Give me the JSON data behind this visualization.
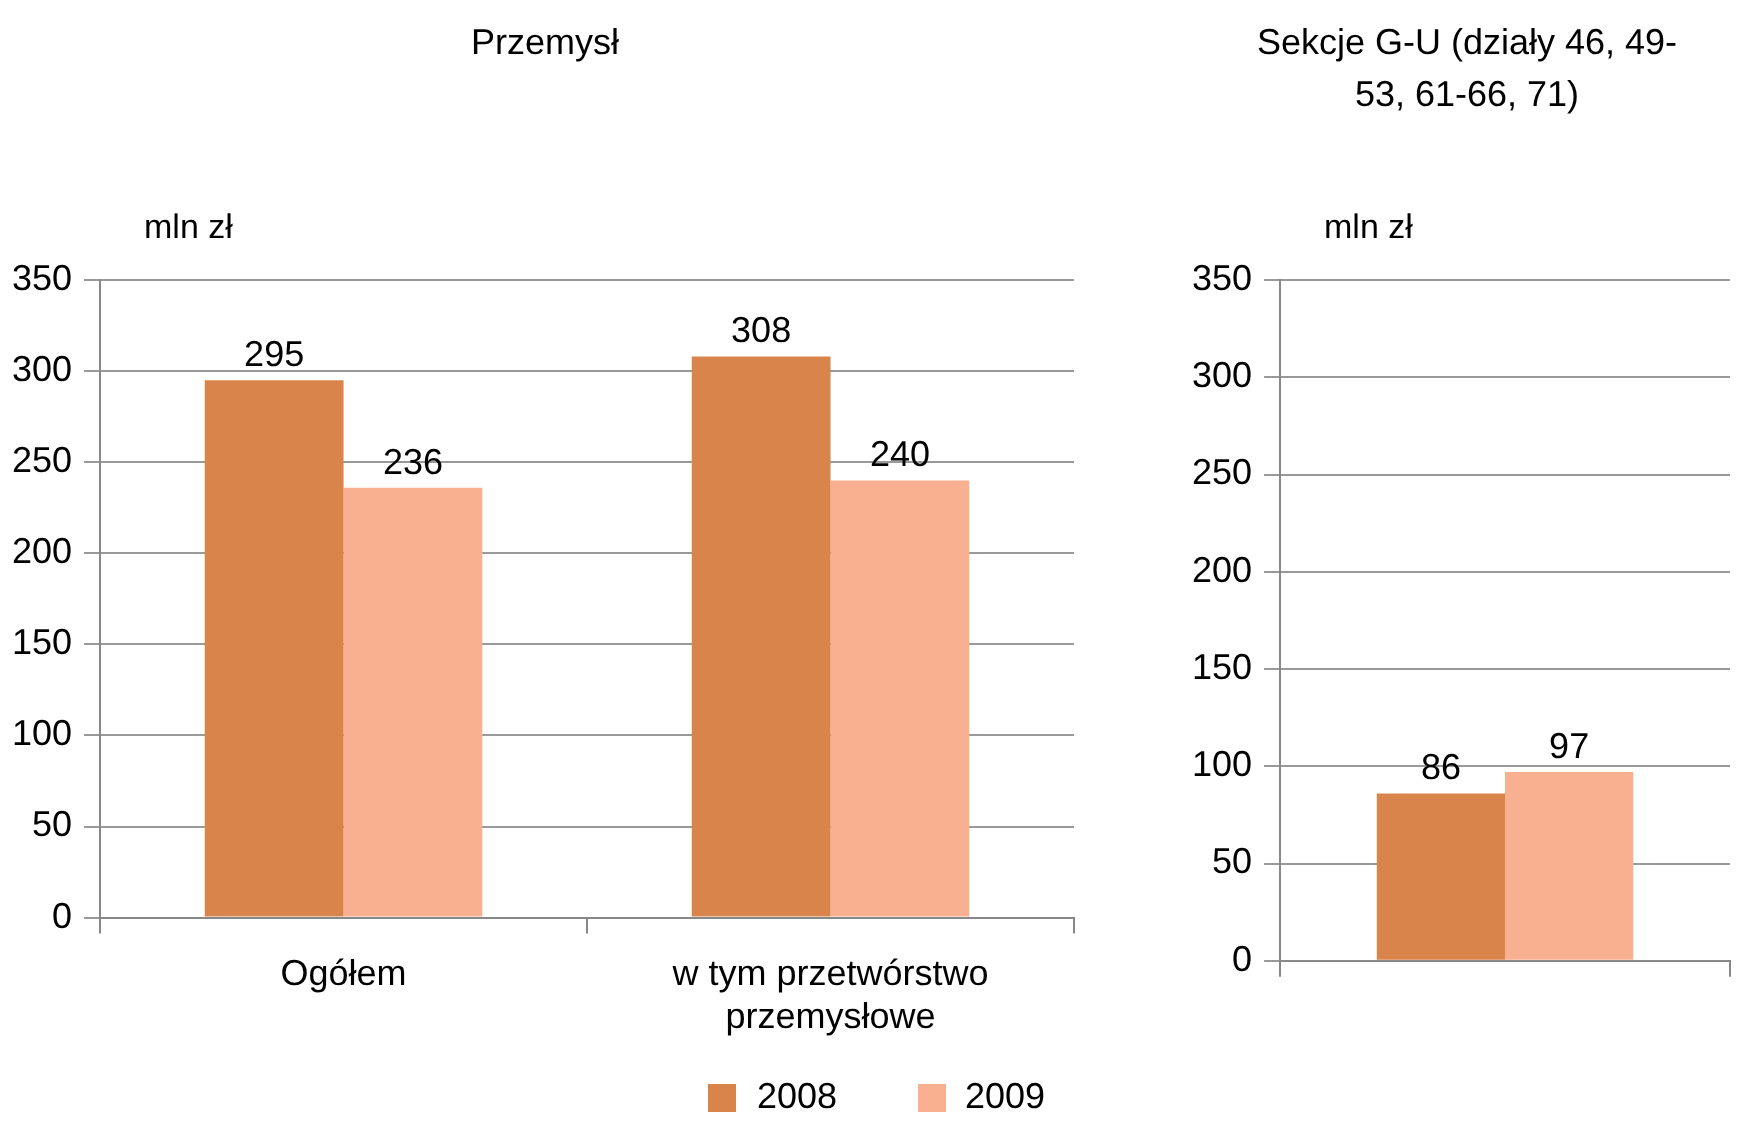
{
  "chart_data": [
    {
      "type": "bar",
      "title": "Przemysł",
      "ylabel": "mln zł",
      "categories": [
        "Ogółem",
        "w tym przetwórstwo przemysłowe"
      ],
      "series": [
        {
          "name": "2008",
          "color": "#d9844a",
          "values": [
            295,
            308
          ]
        },
        {
          "name": "2009",
          "color": "#f9b090",
          "values": [
            236,
            240
          ]
        }
      ],
      "ylim": [
        0,
        350
      ],
      "yticks": [
        0,
        50,
        100,
        150,
        200,
        250,
        300,
        350
      ],
      "grid": "y",
      "legend": "bottom",
      "data_labels": true
    },
    {
      "type": "bar",
      "title": "Sekcje G-U (działy 46, 49-53, 61-66, 71)",
      "ylabel": "mln zł",
      "categories": [
        null
      ],
      "series": [
        {
          "color": "#d9844a",
          "values": [
            86
          ]
        },
        {
          "color": "#f9b090",
          "values": [
            97
          ]
        }
      ],
      "ylim": [
        0,
        350
      ],
      "yticks": [
        0,
        50,
        100,
        150,
        200,
        250,
        300,
        350
      ],
      "grid": "y",
      "data_labels": true
    }
  ]
}
